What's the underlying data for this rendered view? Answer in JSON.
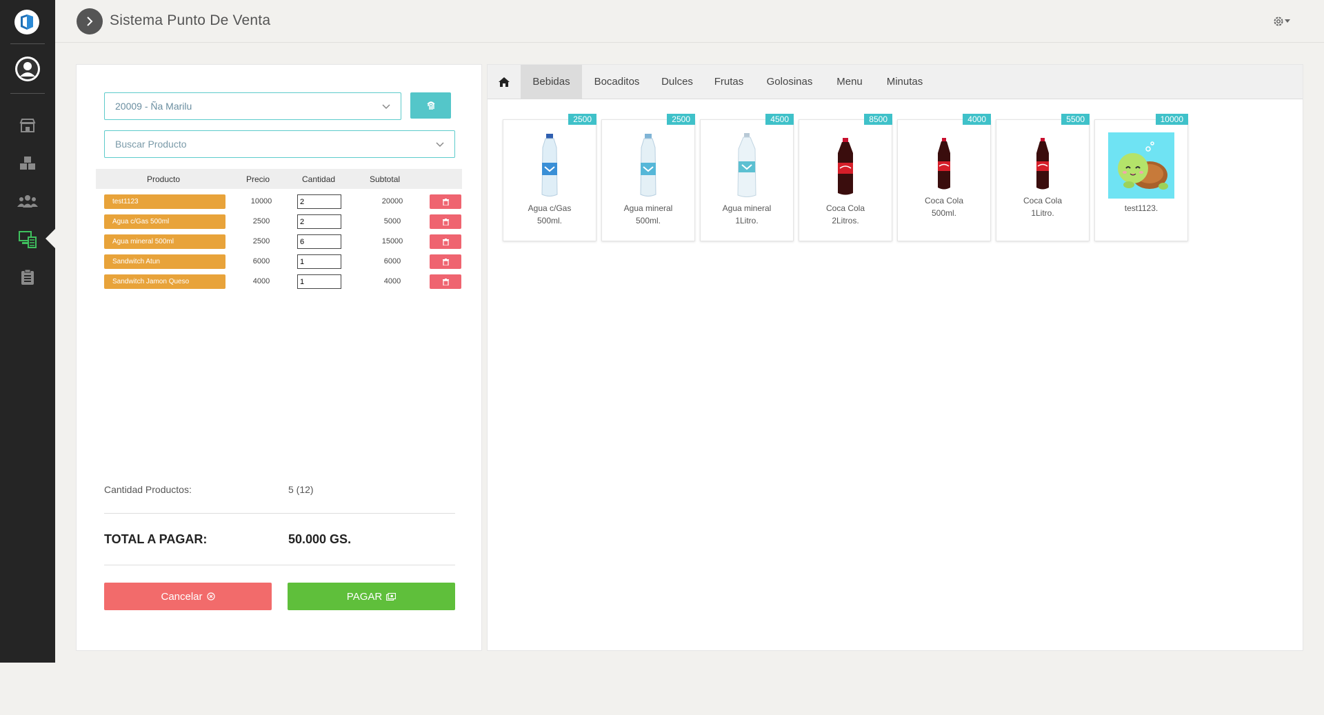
{
  "app": {
    "title": "Sistema Punto De Venta"
  },
  "sidebar": {
    "items": [
      {
        "icon": "store-icon"
      },
      {
        "icon": "boxes-icon"
      },
      {
        "icon": "users-icon"
      },
      {
        "icon": "cash-register-icon",
        "active": true
      },
      {
        "icon": "clipboard-list-icon"
      }
    ]
  },
  "left": {
    "client_select": "20009 - Ña Marilu",
    "search_placeholder": "Buscar Producto",
    "columns": {
      "product": "Producto",
      "price": "Precio",
      "qty": "Cantidad",
      "subtotal": "Subtotal"
    },
    "rows": [
      {
        "product": "test1123",
        "price": "10000",
        "qty": "2",
        "subtotal": "20000"
      },
      {
        "product": "Agua c/Gas 500ml",
        "price": "2500",
        "qty": "2",
        "subtotal": "5000"
      },
      {
        "product": "Agua mineral 500ml",
        "price": "2500",
        "qty": "6",
        "subtotal": "15000"
      },
      {
        "product": "Sandwitch Atun",
        "price": "6000",
        "qty": "1",
        "subtotal": "6000"
      },
      {
        "product": "Sandwitch Jamon Queso",
        "price": "4000",
        "qty": "1",
        "subtotal": "4000"
      }
    ],
    "summary": {
      "count_label": "Cantidad Productos:",
      "count_value": "5 (12)",
      "total_label": "TOTAL A PAGAR:",
      "total_value": "50.000 GS."
    },
    "buttons": {
      "cancel": "Cancelar",
      "pay": "PAGAR"
    }
  },
  "right": {
    "tabs": [
      "Bebidas",
      "Bocaditos",
      "Dulces",
      "Frutas",
      "Golosinas",
      "Menu",
      "Minutas"
    ],
    "active_tab": "Bebidas",
    "products": [
      {
        "price": "2500",
        "line1": "Agua c/Gas",
        "line2": "500ml.",
        "img": "water"
      },
      {
        "price": "2500",
        "line1": "Agua mineral",
        "line2": "500ml.",
        "img": "water"
      },
      {
        "price": "4500",
        "line1": "Agua mineral",
        "line2": "1Litro.",
        "img": "water-large"
      },
      {
        "price": "8500",
        "line1": "Coca Cola",
        "line2": "2Litros.",
        "img": "cola-large"
      },
      {
        "price": "4000",
        "line1": "Coca Cola",
        "line2": "500ml.",
        "img": "cola"
      },
      {
        "price": "5500",
        "line1": "Coca Cola",
        "line2": "1Litro.",
        "img": "cola"
      },
      {
        "price": "10000",
        "line1": "test1123.",
        "line2": "",
        "img": "turtle"
      }
    ]
  },
  "colors": {
    "sidebar": "#252525",
    "accent_teal": "#54c6c9",
    "pill_orange": "#e8a33a",
    "danger": "#ef6470",
    "success": "#5fbf3b"
  }
}
